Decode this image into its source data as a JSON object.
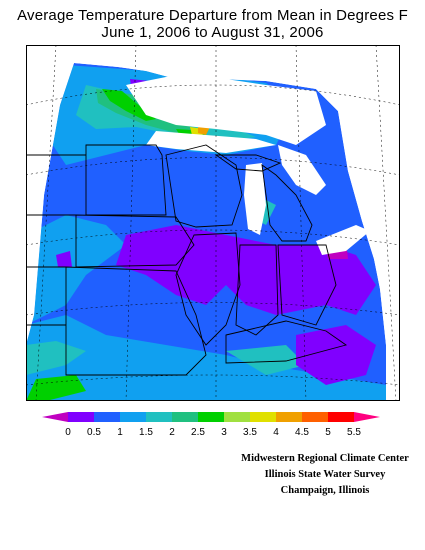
{
  "title": {
    "line1": "Average Temperature Departure from Mean in Degrees F",
    "line2": "June 1, 2006 to August 31, 2006"
  },
  "legend": {
    "labels": [
      "0",
      "0.5",
      "1",
      "1.5",
      "2",
      "2.5",
      "3",
      "3.5",
      "4",
      "4.5",
      "5",
      "5.5"
    ],
    "colors": [
      "#c000c0",
      "#8000ff",
      "#2060ff",
      "#10a0f0",
      "#20c0c0",
      "#20c080",
      "#00d000",
      "#a0e040",
      "#e0e000",
      "#f0a000",
      "#ff6000",
      "#ff0000",
      "#ff0080"
    ]
  },
  "credits": {
    "line1": "Midwestern Regional Climate Center",
    "line2": "Illinois State Water Survey",
    "line3": "Champaign, Illinois"
  },
  "palette": {
    "purple": "#8000ff",
    "blue": "#2060ff",
    "sky": "#10a0f0",
    "teal": "#20c0c0",
    "seafoam": "#20c080",
    "green": "#00d000",
    "lime": "#a0e040",
    "yellow": "#e0e000",
    "orange": "#f0a000",
    "magenta": "#c000c0"
  }
}
